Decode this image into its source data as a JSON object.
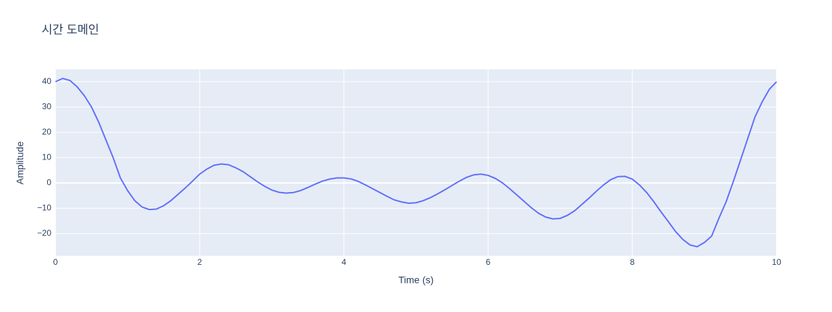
{
  "chart_data": {
    "type": "line",
    "title": "시간 도메인",
    "xlabel": "Time (s)",
    "ylabel": "Amplitude",
    "x": [
      0,
      0.1,
      0.2,
      0.3,
      0.4,
      0.5,
      0.6,
      0.7,
      0.8,
      0.9,
      1.0,
      1.1,
      1.2,
      1.3,
      1.4,
      1.5,
      1.6,
      1.7,
      1.8,
      1.9,
      2.0,
      2.1,
      2.2,
      2.3,
      2.4,
      2.5,
      2.6,
      2.7,
      2.8,
      2.9,
      3.0,
      3.1,
      3.2,
      3.3,
      3.4,
      3.5,
      3.6,
      3.7,
      3.8,
      3.9,
      4.0,
      4.1,
      4.2,
      4.3,
      4.4,
      4.5,
      4.6,
      4.7,
      4.8,
      4.9,
      5.0,
      5.1,
      5.2,
      5.3,
      5.4,
      5.5,
      5.6,
      5.7,
      5.8,
      5.9,
      6.0,
      6.1,
      6.2,
      6.3,
      6.4,
      6.5,
      6.6,
      6.7,
      6.8,
      6.9,
      7.0,
      7.1,
      7.2,
      7.3,
      7.4,
      7.5,
      7.6,
      7.7,
      7.8,
      7.9,
      8.0,
      8.1,
      8.2,
      8.3,
      8.4,
      8.5,
      8.6,
      8.7,
      8.8,
      8.9,
      9.0,
      9.1,
      9.2,
      9.3,
      9.4,
      9.5,
      9.6,
      9.7,
      9.8,
      9.9,
      10.0
    ],
    "series": [
      {
        "name": "Amplitude",
        "color": "#636efa",
        "values": [
          40,
          41.3,
          40.5,
          38,
          34.5,
          30,
          24,
          17,
          10,
          2,
          -3,
          -7,
          -9.5,
          -10.5,
          -10.3,
          -9,
          -7,
          -4.5,
          -2,
          0.7,
          3.5,
          5.5,
          7,
          7.5,
          7.2,
          6,
          4.5,
          2.5,
          0.5,
          -1.3,
          -2.8,
          -3.7,
          -4,
          -3.8,
          -3,
          -1.8,
          -0.5,
          0.7,
          1.5,
          2,
          2,
          1.6,
          0.6,
          -0.8,
          -2.3,
          -3.8,
          -5.3,
          -6.7,
          -7.5,
          -8,
          -7.8,
          -7,
          -5.8,
          -4.3,
          -2.7,
          -1,
          0.7,
          2.2,
          3.2,
          3.5,
          3,
          1.8,
          0,
          -2.3,
          -4.8,
          -7.3,
          -9.8,
          -12,
          -13.5,
          -14.2,
          -14,
          -12.8,
          -11,
          -8.5,
          -6,
          -3.3,
          -0.8,
          1.3,
          2.5,
          2.6,
          1.5,
          -0.8,
          -3.8,
          -7.5,
          -11.5,
          -15.3,
          -19.2,
          -22.3,
          -24.5,
          -25.2,
          -23.5,
          -21,
          -14,
          -7.5,
          0.5,
          9,
          17.5,
          26,
          32,
          37,
          40
        ]
      }
    ],
    "xlim": [
      0,
      10
    ],
    "xticks": [
      0,
      2,
      4,
      6,
      8,
      10
    ],
    "ylim": [
      -28.8,
      44.9
    ],
    "yticks": [
      {
        "value": -20,
        "label": "−20"
      },
      {
        "value": -10,
        "label": "−10"
      },
      0,
      10,
      20,
      30,
      40
    ],
    "grid": true
  }
}
